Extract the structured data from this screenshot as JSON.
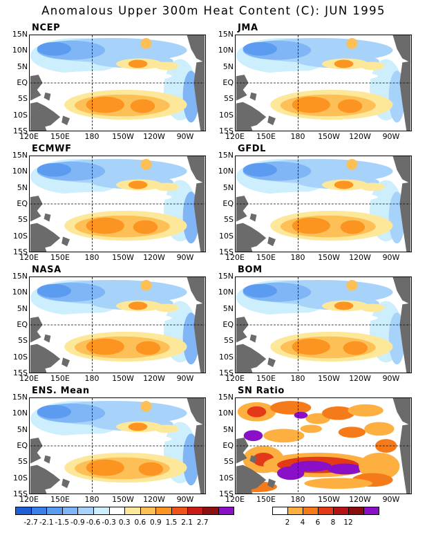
{
  "title": "Anomalous Upper 300m Heat Content (C): JUN 1995",
  "axes": {
    "y_ticks": [
      "15N",
      "10N",
      "5N",
      "EQ",
      "5S",
      "10S",
      "15S"
    ],
    "x_ticks": [
      "120E",
      "150E",
      "180",
      "150W",
      "120W",
      "90W"
    ]
  },
  "panels": [
    {
      "name": "NCEP"
    },
    {
      "name": "JMA"
    },
    {
      "name": "ECMWF"
    },
    {
      "name": "GFDL"
    },
    {
      "name": "NASA"
    },
    {
      "name": "BOM"
    },
    {
      "name": "ENS. Mean"
    },
    {
      "name": "SN Ratio"
    }
  ],
  "colorbar_anomaly": {
    "labels": [
      "-2.7",
      "-2.1",
      "-1.5",
      "-0.9",
      "-0.6",
      "-0.3",
      "0.3",
      "0.6",
      "0.9",
      "1.5",
      "2.1",
      "2.7"
    ],
    "colors": [
      "#1f5fd6",
      "#3a80e8",
      "#5c9cf0",
      "#80b6f5",
      "#a7d2f9",
      "#cdeefc",
      "#ffffff",
      "#fde89a",
      "#fdc057",
      "#fb9420",
      "#f0521c",
      "#c91a15",
      "#8e0f0f",
      "#8a10c8"
    ]
  },
  "colorbar_sn": {
    "labels": [
      "2",
      "4",
      "6",
      "8",
      "12"
    ],
    "colors": [
      "#ffffff",
      "#fdb040",
      "#f57b1a",
      "#e23a18",
      "#b81313",
      "#8a0d0d",
      "#8a10c8"
    ]
  },
  "colors": {
    "land": "#6b6b6b",
    "grid": "#000000"
  }
}
